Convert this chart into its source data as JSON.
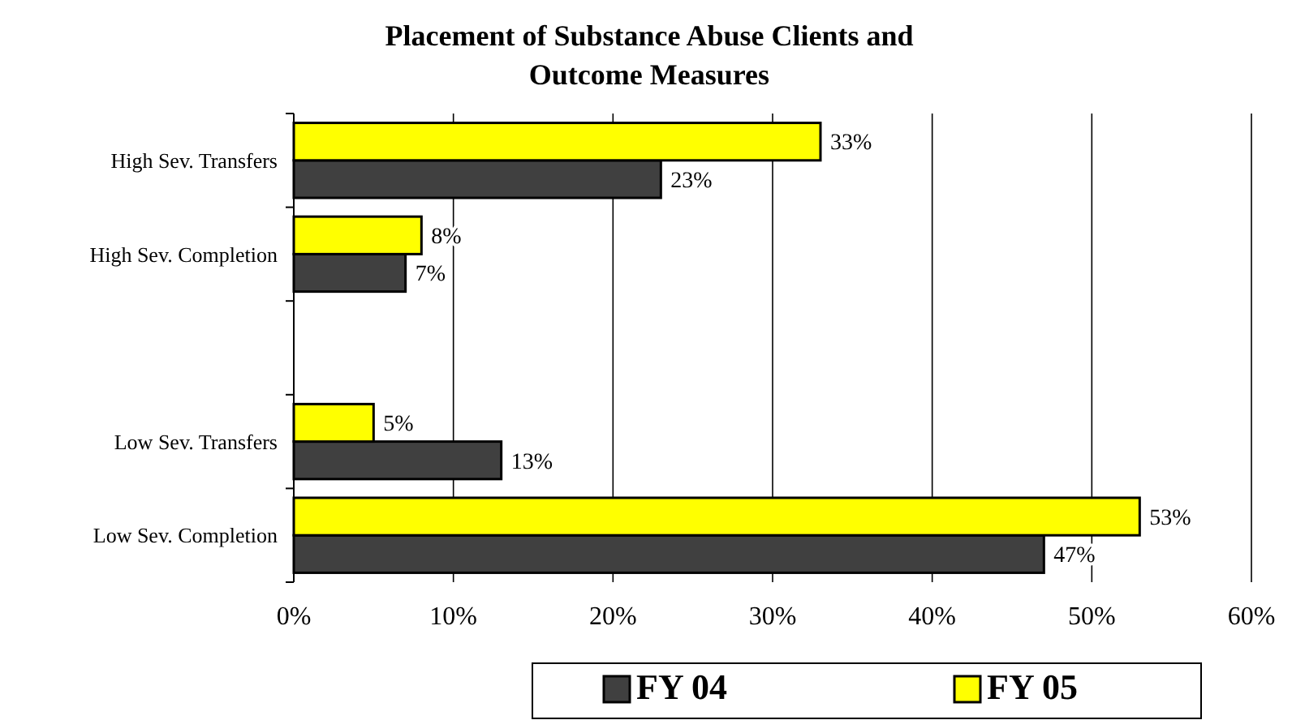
{
  "chart_data": {
    "type": "bar",
    "orientation": "horizontal",
    "title": "Placement of Substance Abuse Clients and Outcome Measures",
    "categories": [
      "High Sev. Transfers",
      "High Sev. Completion",
      null,
      "Low Sev. Transfers",
      "Low Sev. Completion"
    ],
    "series": [
      {
        "name": "FY 04",
        "color": "#404040",
        "values": [
          23,
          7,
          null,
          13,
          47
        ],
        "value_labels": [
          "23%",
          "7%",
          null,
          "13%",
          "47%"
        ]
      },
      {
        "name": "FY 05",
        "color": "#ffff00",
        "values": [
          33,
          8,
          null,
          5,
          53
        ],
        "value_labels": [
          "33%",
          "8%",
          null,
          "5%",
          "53%"
        ]
      }
    ],
    "xlim": [
      0,
      60
    ],
    "xticks": [
      {
        "value": 0,
        "label": "0%"
      },
      {
        "value": 10,
        "label": "10%"
      },
      {
        "value": 20,
        "label": "20%"
      },
      {
        "value": 30,
        "label": "30%"
      },
      {
        "value": 40,
        "label": "40%"
      },
      {
        "value": 50,
        "label": "50%"
      },
      {
        "value": 60,
        "label": "60%"
      }
    ],
    "grid": "x",
    "legend": "bottom"
  }
}
